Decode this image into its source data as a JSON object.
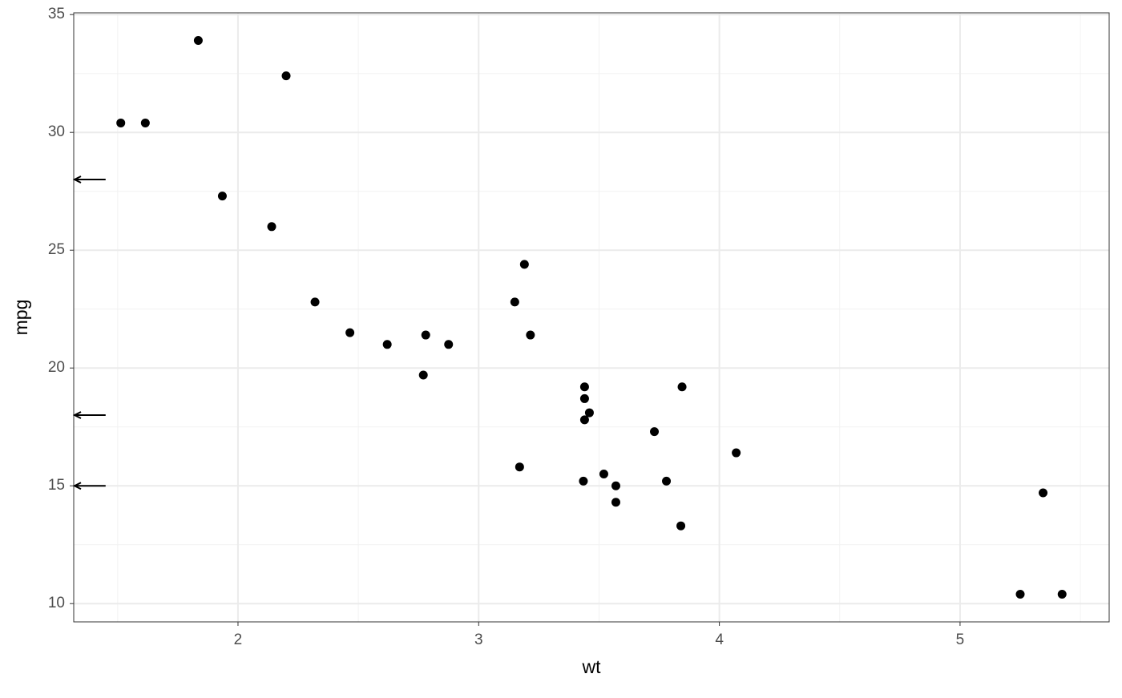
{
  "chart_data": {
    "type": "scatter",
    "x_label": "wt",
    "y_label": "mpg",
    "x": [
      2.62,
      2.875,
      2.32,
      3.215,
      3.44,
      3.46,
      3.57,
      3.19,
      3.15,
      3.44,
      3.44,
      4.07,
      3.73,
      3.78,
      5.25,
      5.424,
      5.345,
      2.2,
      1.615,
      1.835,
      2.465,
      3.52,
      3.435,
      3.84,
      3.845,
      1.935,
      2.14,
      1.513,
      3.17,
      2.77,
      3.57,
      2.78
    ],
    "y": [
      21.0,
      21.0,
      22.8,
      21.4,
      18.7,
      18.1,
      14.3,
      24.4,
      22.8,
      19.2,
      17.8,
      16.4,
      17.3,
      15.2,
      10.4,
      10.4,
      14.7,
      32.4,
      30.4,
      33.9,
      21.5,
      15.5,
      15.2,
      13.3,
      19.2,
      27.3,
      26.0,
      30.4,
      15.8,
      19.7,
      15.0,
      21.4
    ],
    "color": "#000000",
    "xlim": [
      1.3175,
      5.6196
    ],
    "ylim": [
      9.225,
      35.075
    ],
    "xticks": [
      2,
      3,
      4,
      5
    ],
    "yticks": [
      10,
      15,
      20,
      25,
      30,
      35
    ],
    "x_minor_ticks": [
      1.5,
      2.5,
      3.5,
      4.5,
      5.5
    ],
    "y_minor_ticks": [
      12.5,
      17.5,
      22.5,
      27.5,
      32.5
    ],
    "grid": true,
    "arrows": [
      {
        "y": 28,
        "x_start": 1.45
      },
      {
        "y": 18,
        "x_start": 1.45
      },
      {
        "y": 15,
        "x_start": 1.45
      }
    ]
  }
}
